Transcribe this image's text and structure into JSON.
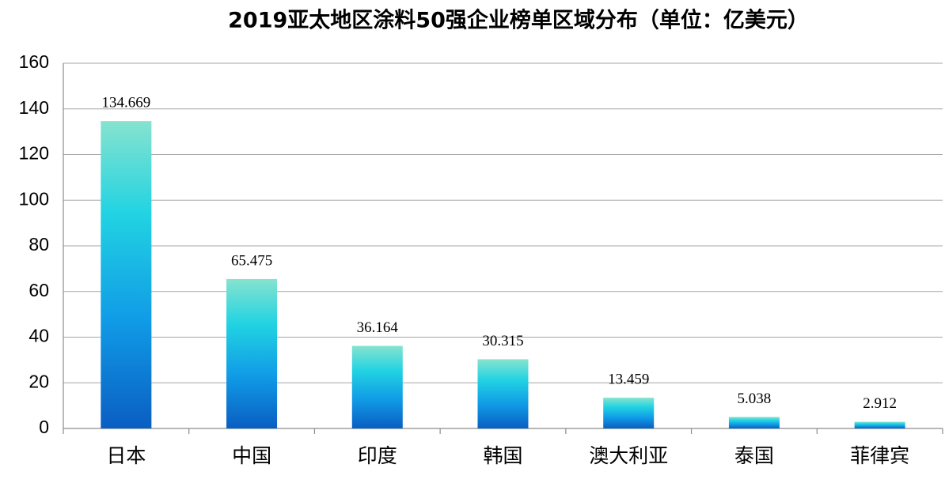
{
  "chart_data": {
    "type": "bar",
    "title": "2019亚太地区涂料50强企业榜单区域分布（单位：亿美元）",
    "categories": [
      "日本",
      "中国",
      "印度",
      "韩国",
      "澳大利亚",
      "泰国",
      "菲律宾"
    ],
    "values": [
      134.669,
      65.475,
      36.164,
      30.315,
      13.459,
      5.038,
      2.912
    ],
    "ylim": [
      0,
      160
    ],
    "yticks": [
      0,
      20,
      40,
      60,
      80,
      100,
      120,
      140,
      160
    ],
    "grid": true
  }
}
